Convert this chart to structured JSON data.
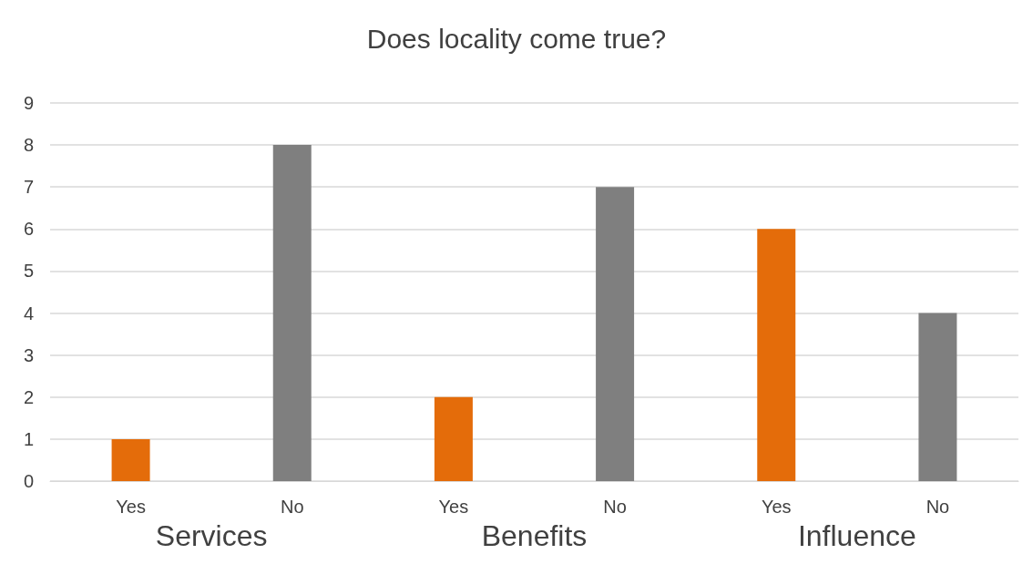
{
  "chart_data": {
    "type": "bar",
    "title": "Does locality come true?",
    "categories": [
      "Yes",
      "No",
      "Yes",
      "No",
      "Yes",
      "No"
    ],
    "values": [
      1,
      8,
      2,
      7,
      6,
      4
    ],
    "colors": [
      "#e46c0a",
      "#7f7f7f",
      "#e46c0a",
      "#7f7f7f",
      "#e46c0a",
      "#7f7f7f"
    ],
    "ylim": [
      0,
      9
    ],
    "yticks": [
      0,
      1,
      2,
      3,
      4,
      5,
      6,
      7,
      8,
      9
    ],
    "grid": true,
    "annotations": [
      "Services",
      "Benefits",
      "Influence"
    ]
  }
}
